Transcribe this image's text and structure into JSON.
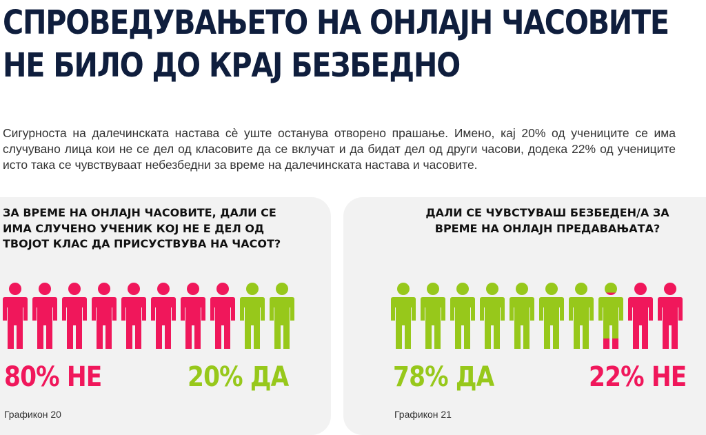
{
  "title": {
    "line1": "СПРОВЕДУВАЊЕТО НА ОНЛАЈН ЧАСОВИТЕ",
    "line2": "НЕ БИЛО ДО КРАЈ БЕЗБЕДНО"
  },
  "intro": "Сигурноста на далечинската настава сè уште останува отворено прашање. Имено, кај 20% од учениците се има случувано лица кои не се дел од класовите да се вклучат и да бидат дел од други часови, додека 22% од учениците исто така се чувствуваат небезбедни за време на далечинската настава и часовите.",
  "colors": {
    "pink": "#f0175b",
    "green": "#97c81b",
    "title": "#0f1e3d",
    "card": "#f2f2f2"
  },
  "chart_data": [
    {
      "type": "pictogram",
      "icon": "person-icon",
      "question": "ЗА ВРЕМЕ НА ОНЛАЈН ЧАСОВИТЕ, ДАЛИ СЕ ИМА СЛУЧЕНО УЧЕНИК КОЈ НЕ Е ДЕЛ ОД ТВОЈОТ КЛАС ДА ПРИСУСТВУВА НА ЧАСОТ?",
      "total_icons": 10,
      "categories": [
        "НЕ",
        "ДА"
      ],
      "values": [
        80,
        20
      ],
      "labels": [
        "80% НЕ",
        "20% ДА"
      ],
      "colors": [
        "#f0175b",
        "#97c81b"
      ],
      "caption": "Графикон 20"
    },
    {
      "type": "pictogram",
      "icon": "person-icon",
      "question": "ДАЛИ СЕ ЧУВСТУВАШ БЕЗБЕДЕН/А ЗА ВРЕМЕ НА ОНЛАЈН ПРЕДАВАЊАТА?",
      "total_icons": 10,
      "categories": [
        "ДА",
        "НЕ"
      ],
      "values": [
        78,
        22
      ],
      "labels": [
        "78% ДА",
        "22% НЕ"
      ],
      "colors": [
        "#97c81b",
        "#f0175b"
      ],
      "caption": "Графикон 21"
    }
  ]
}
